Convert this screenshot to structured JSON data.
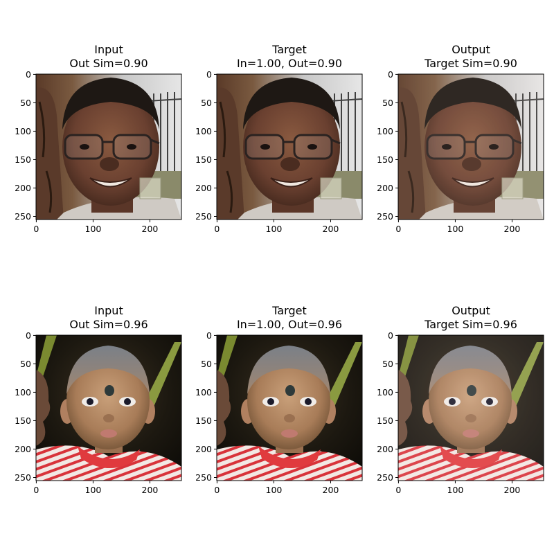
{
  "figure": {
    "panels": [
      {
        "title_line1": "Input",
        "title_line2": "Out Sim=0.90",
        "image": "photo-man-with-glasses-smiling",
        "x_ticks": [
          "0",
          "100",
          "200"
        ],
        "y_ticks": [
          "0",
          "50",
          "100",
          "150",
          "200",
          "250"
        ]
      },
      {
        "title_line1": "Target",
        "title_line2": "In=1.00, Out=0.90",
        "image": "photo-man-with-glasses-smiling",
        "x_ticks": [
          "0",
          "100",
          "200"
        ],
        "y_ticks": [
          "0",
          "50",
          "100",
          "150",
          "200",
          "250"
        ]
      },
      {
        "title_line1": "Output",
        "title_line2": "Target Sim=0.90",
        "image": "photo-man-with-glasses-smiling-reconstructed",
        "x_ticks": [
          "0",
          "100",
          "200"
        ],
        "y_ticks": [
          "0",
          "50",
          "100",
          "150",
          "200",
          "250"
        ]
      },
      {
        "title_line1": "Input",
        "title_line2": "Out Sim=0.96",
        "image": "photo-toddler-with-forehead-mark",
        "x_ticks": [
          "0",
          "100",
          "200"
        ],
        "y_ticks": [
          "0",
          "50",
          "100",
          "150",
          "200",
          "250"
        ]
      },
      {
        "title_line1": "Target",
        "title_line2": "In=1.00, Out=0.96",
        "image": "photo-toddler-with-forehead-mark",
        "x_ticks": [
          "0",
          "100",
          "200"
        ],
        "y_ticks": [
          "0",
          "50",
          "100",
          "150",
          "200",
          "250"
        ]
      },
      {
        "title_line1": "Output",
        "title_line2": "Target Sim=0.96",
        "image": "photo-toddler-with-forehead-mark-reconstructed",
        "x_ticks": [
          "0",
          "100",
          "200"
        ],
        "y_ticks": [
          "0",
          "50",
          "100",
          "150",
          "200",
          "250"
        ]
      }
    ]
  }
}
